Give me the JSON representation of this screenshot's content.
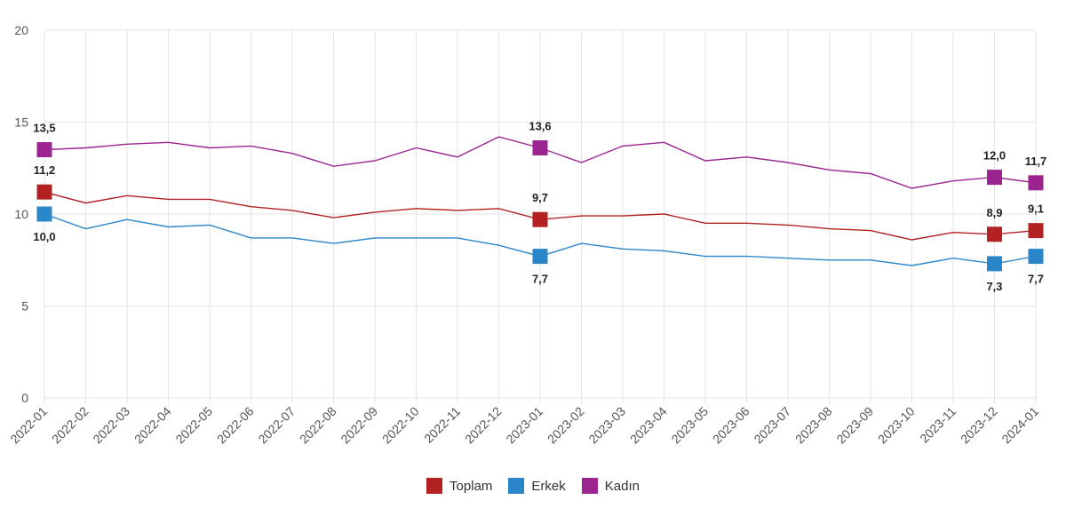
{
  "chart_data": {
    "type": "line",
    "title": "",
    "xlabel": "",
    "ylabel": "",
    "ylim": [
      0,
      20
    ],
    "yticks": [
      0,
      5,
      10,
      15,
      20
    ],
    "grid": true,
    "legend_position": "bottom-center",
    "categories": [
      "2022-01",
      "2022-02",
      "2022-03",
      "2022-04",
      "2022-05",
      "2022-06",
      "2022-07",
      "2022-08",
      "2022-09",
      "2022-10",
      "2022-11",
      "2022-12",
      "2023-01",
      "2023-02",
      "2023-03",
      "2023-04",
      "2023-05",
      "2023-06",
      "2023-07",
      "2023-08",
      "2023-09",
      "2023-10",
      "2023-11",
      "2023-12",
      "2024-01"
    ],
    "series": [
      {
        "name": "Toplam",
        "color": "#b22222",
        "values": [
          11.2,
          10.6,
          11.0,
          10.8,
          10.8,
          10.4,
          10.2,
          9.8,
          10.1,
          10.3,
          10.2,
          10.3,
          9.7,
          9.9,
          9.9,
          10.0,
          9.5,
          9.5,
          9.4,
          9.2,
          9.1,
          8.6,
          9.0,
          8.9,
          9.1
        ],
        "labeled_points": [
          {
            "index": 0,
            "text": "11,2",
            "position": "above"
          },
          {
            "index": 12,
            "text": "9,7",
            "position": "above"
          },
          {
            "index": 23,
            "text": "8,9",
            "position": "above"
          },
          {
            "index": 24,
            "text": "9,1",
            "position": "above"
          }
        ]
      },
      {
        "name": "Erkek",
        "color": "#2a86c8",
        "values": [
          10.0,
          9.2,
          9.7,
          9.3,
          9.4,
          8.7,
          8.7,
          8.4,
          8.7,
          8.7,
          8.7,
          8.3,
          7.7,
          8.4,
          8.1,
          8.0,
          7.7,
          7.7,
          7.6,
          7.5,
          7.5,
          7.2,
          7.6,
          7.3,
          7.7
        ],
        "labeled_points": [
          {
            "index": 0,
            "text": "10,0",
            "position": "below"
          },
          {
            "index": 12,
            "text": "7,7",
            "position": "below"
          },
          {
            "index": 23,
            "text": "7,3",
            "position": "below"
          },
          {
            "index": 24,
            "text": "7,7",
            "position": "below"
          }
        ]
      },
      {
        "name": "Kadın",
        "color": "#9b2490",
        "values": [
          13.5,
          13.6,
          13.8,
          13.9,
          13.6,
          13.7,
          13.3,
          12.6,
          12.9,
          13.6,
          13.1,
          14.2,
          13.6,
          12.8,
          13.7,
          13.9,
          12.9,
          13.1,
          12.8,
          12.4,
          12.2,
          11.4,
          11.8,
          12.0,
          11.7
        ],
        "labeled_points": [
          {
            "index": 0,
            "text": "13,5",
            "position": "above"
          },
          {
            "index": 12,
            "text": "13,6",
            "position": "above"
          },
          {
            "index": 23,
            "text": "12,0",
            "position": "above"
          },
          {
            "index": 24,
            "text": "11,7",
            "position": "above"
          }
        ]
      }
    ]
  }
}
